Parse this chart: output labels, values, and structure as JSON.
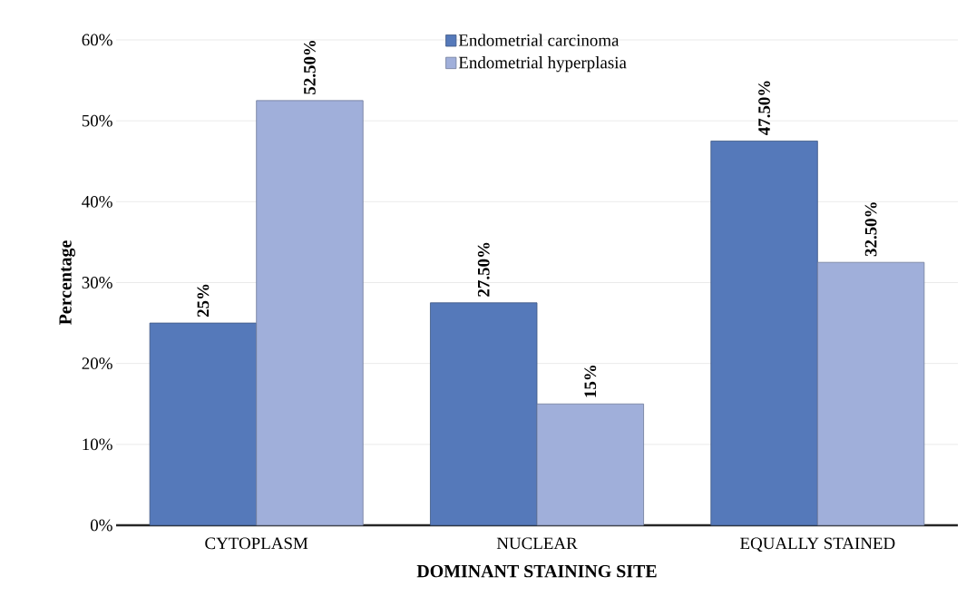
{
  "chart_data": {
    "type": "bar",
    "xlabel": "DOMINANT STAINING SITE",
    "ylabel": "Percentage",
    "categories": [
      "CYTOPLASM",
      "NUCLEAR",
      "EQUALLY STAINED"
    ],
    "series": [
      {
        "name": "Endometrial carcinoma",
        "color": "#5579ba",
        "values": [
          25,
          27.5,
          47.5
        ],
        "value_labels": [
          "25%",
          "27.50%",
          "47.50%"
        ]
      },
      {
        "name": "Endometrial hyperplasia",
        "color": "#a0afda",
        "values": [
          52.5,
          15,
          32.5
        ],
        "value_labels": [
          "52.50%",
          "15%",
          "32.50%"
        ]
      }
    ],
    "ylim": [
      0,
      60
    ],
    "yticks": [
      {
        "value": 0,
        "label": "0%"
      },
      {
        "value": 10,
        "label": "10%"
      },
      {
        "value": 20,
        "label": "20%"
      },
      {
        "value": 30,
        "label": "30%"
      },
      {
        "value": 40,
        "label": "40%"
      },
      {
        "value": 50,
        "label": "50%"
      },
      {
        "value": 60,
        "label": "60%"
      }
    ],
    "grid": "y",
    "legend": "top"
  }
}
